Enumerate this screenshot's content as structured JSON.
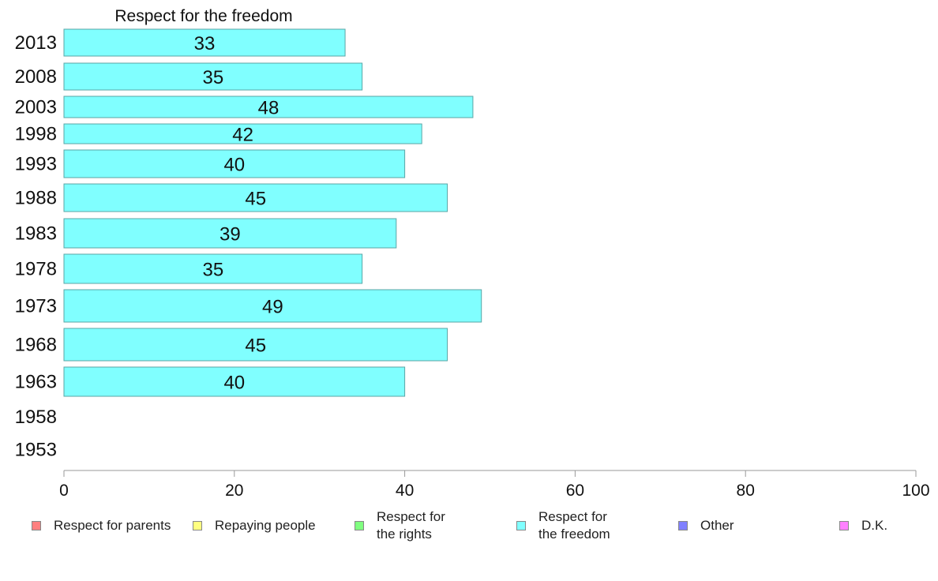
{
  "chart_data": {
    "type": "bar",
    "orientation": "horizontal",
    "title": "Respect for the freedom",
    "categories": [
      "2013",
      "2008",
      "2003",
      "1998",
      "1993",
      "1988",
      "1983",
      "1978",
      "1973",
      "1968",
      "1963",
      "1958",
      "1953"
    ],
    "series": [
      {
        "name": "Respect for the freedom",
        "color": "#80FFFF",
        "values": [
          33,
          35,
          48,
          42,
          40,
          45,
          39,
          35,
          49,
          45,
          40,
          null,
          null
        ]
      }
    ],
    "xlim": [
      0,
      100
    ],
    "xticks": [
      0,
      20,
      40,
      60,
      80,
      100
    ],
    "grid": false,
    "legend_position": "bottom",
    "legend": [
      {
        "label": "Respect for parents",
        "color": "#FF8080"
      },
      {
        "label": "Repaying people",
        "color": "#FFFF80"
      },
      {
        "label": "Respect for\nthe rights",
        "color": "#80FF80"
      },
      {
        "label": "Respect for\nthe freedom",
        "color": "#80FFFF"
      },
      {
        "label": "Other",
        "color": "#8080FF"
      },
      {
        "label": "D.K.",
        "color": "#FF80FF"
      }
    ]
  }
}
